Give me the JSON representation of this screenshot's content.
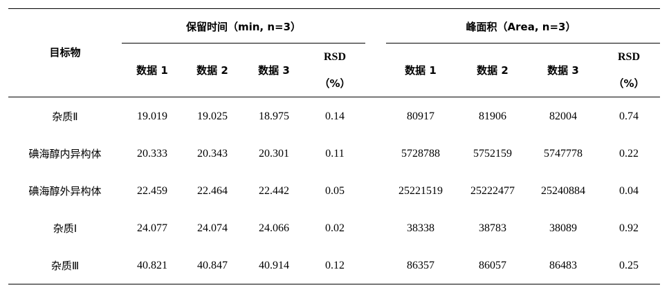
{
  "table": {
    "target_header": "目标物",
    "group_headers": {
      "retention": "保留时间（min, n=3）",
      "area": "峰面积（Area, n=3）"
    },
    "sub_headers": {
      "retention": [
        "数据 1",
        "数据 2",
        "数据 3"
      ],
      "area": [
        "数据 1",
        "数据 2",
        "数据 3"
      ],
      "rsd_top": "RSD",
      "rsd_bottom": "（%）"
    },
    "rows": [
      {
        "name": "杂质Ⅱ",
        "rt": [
          "19.019",
          "19.025",
          "18.975"
        ],
        "rt_rsd": "0.14",
        "area": [
          "80917",
          "81906",
          "82004"
        ],
        "area_rsd": "0.74"
      },
      {
        "name": "碘海醇内异构体",
        "rt": [
          "20.333",
          "20.343",
          "20.301"
        ],
        "rt_rsd": "0.11",
        "area": [
          "5728788",
          "5752159",
          "5747778"
        ],
        "area_rsd": "0.22"
      },
      {
        "name": "碘海醇外异构体",
        "rt": [
          "22.459",
          "22.464",
          "22.442"
        ],
        "rt_rsd": "0.05",
        "area": [
          "25221519",
          "25222477",
          "25240884"
        ],
        "area_rsd": "0.04"
      },
      {
        "name": "杂质Ⅰ",
        "rt": [
          "24.077",
          "24.074",
          "24.066"
        ],
        "rt_rsd": "0.02",
        "area": [
          "38338",
          "38783",
          "38089"
        ],
        "area_rsd": "0.92"
      },
      {
        "name": "杂质Ⅲ",
        "rt": [
          "40.821",
          "40.847",
          "40.914"
        ],
        "rt_rsd": "0.12",
        "area": [
          "86357",
          "86057",
          "86483"
        ],
        "area_rsd": "0.25"
      }
    ]
  }
}
